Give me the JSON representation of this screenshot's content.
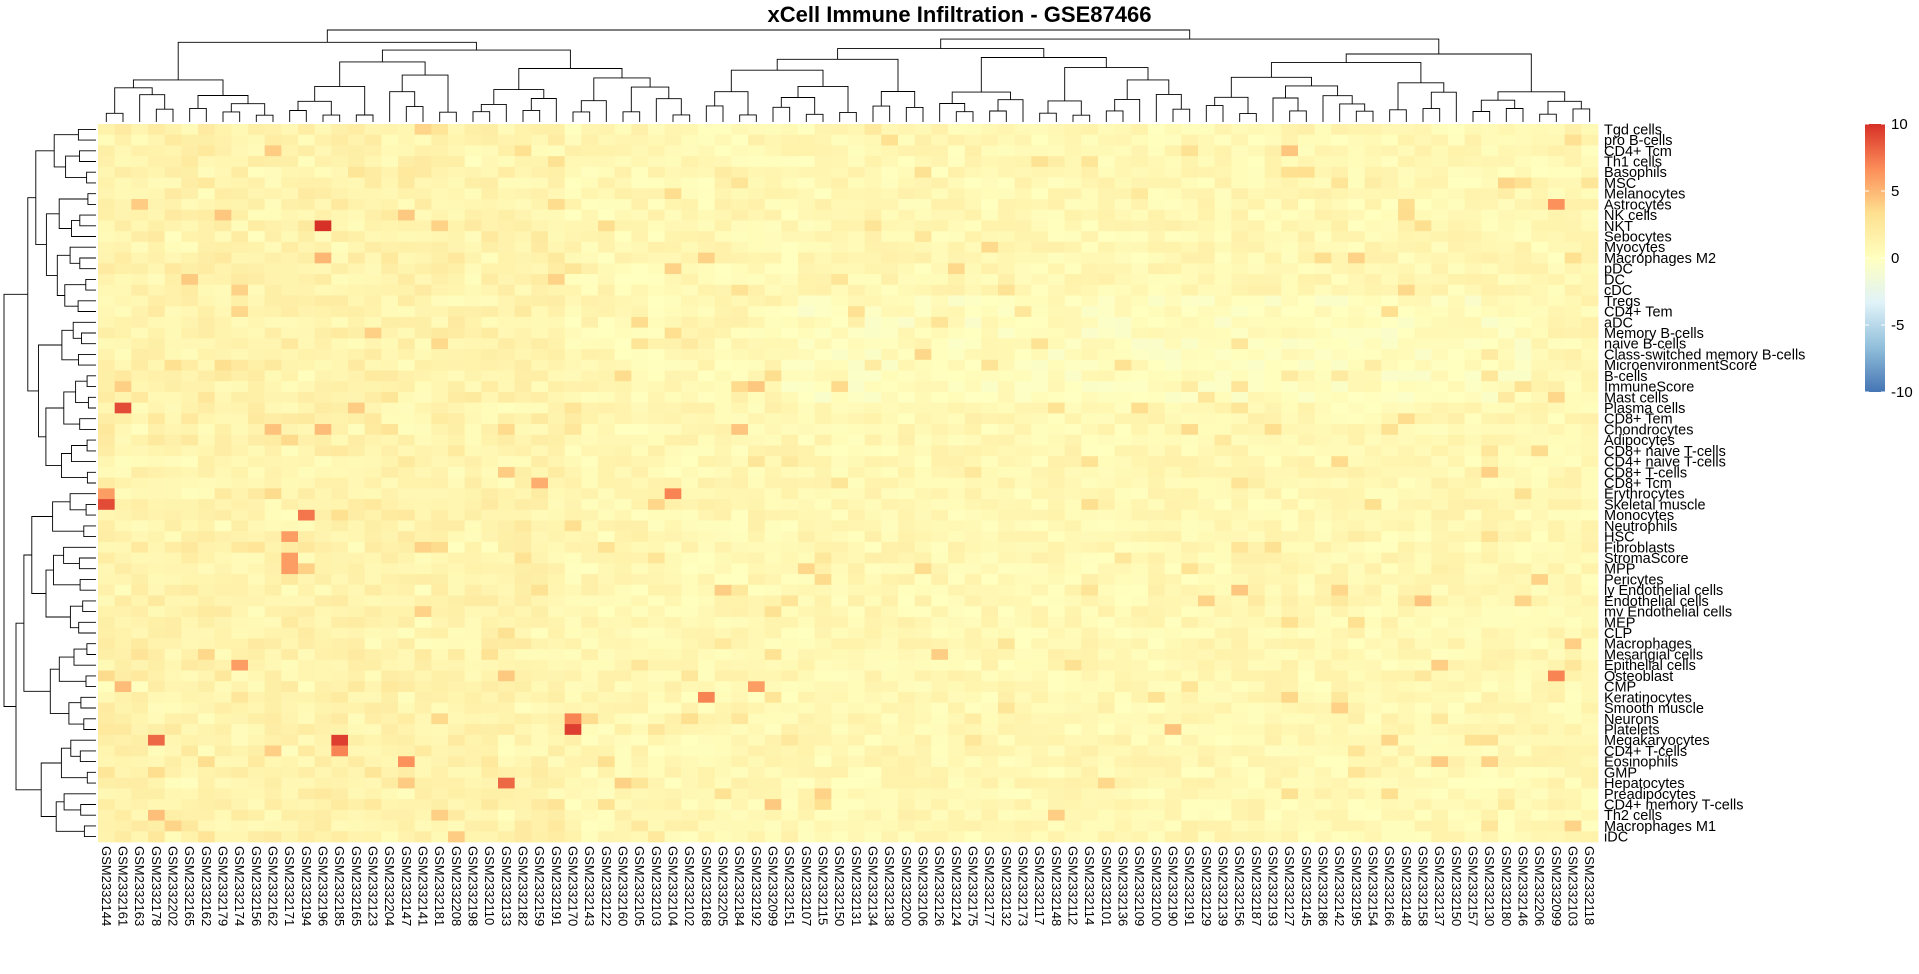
{
  "chart_data": {
    "type": "heatmap",
    "title": "xCell Immune Infiltration - GSE87466",
    "color_scale": {
      "range": [
        -10,
        10
      ],
      "ticks": [
        10,
        5,
        0,
        -5,
        -10
      ],
      "colors": [
        "#4575b4",
        "#91bfdb",
        "#e0f3f8",
        "#ffffbf",
        "#fee090",
        "#fc8d59",
        "#d73027"
      ]
    },
    "rows": [
      "Tgd cells",
      "pro B-cells",
      "CD4+ Tcm",
      "Th1 cells",
      "Basophils",
      "MSC",
      "Melanocytes",
      "Astrocytes",
      "NK cells",
      "NKT",
      "Sebocytes",
      "Myocytes",
      "Macrophages M2",
      "pDC",
      "DC",
      "cDC",
      "Tregs",
      "CD4+ Tem",
      "aDC",
      "Memory B-cells",
      "naive B-cells",
      "Class-switched memory B-cells",
      "MicroenvironmentScore",
      "B-cells",
      "ImmuneScore",
      "Mast cells",
      "Plasma cells",
      "CD8+ Tem",
      "Chondrocytes",
      "Adipocytes",
      "CD8+ naive T-cells",
      "CD4+ naive T-cells",
      "CD8+ T-cells",
      "CD8+ Tcm",
      "Erythrocytes",
      "Skeletal muscle",
      "Monocytes",
      "Neutrophils",
      "HSC",
      "Fibroblasts",
      "StromaScore",
      "MPP",
      "Pericytes",
      "ly Endothelial cells",
      "Endothelial cells",
      "mv Endothelial cells",
      "MEP",
      "CLP",
      "Macrophages",
      "Mesangial cells",
      "Epithelial cells",
      "Osteoblast",
      "CMP",
      "Keratinocytes",
      "Smooth muscle",
      "Neurons",
      "Platelets",
      "Megakaryocytes",
      "CD4+ T-cells",
      "Eosinophils",
      "GMP",
      "Hepatocytes",
      "Preadipocytes",
      "CD4+ memory T-cells",
      "Th2 cells",
      "Macrophages M1",
      "iDC"
    ],
    "columns": [
      "GSM2332144",
      "GSM2332161",
      "GSM2332163",
      "GSM2332178",
      "GSM2332202",
      "GSM2332165",
      "GSM2332162",
      "GSM2332179",
      "GSM2332174",
      "GSM2332156",
      "GSM2332162",
      "GSM2332171",
      "GSM2332194",
      "GSM2332196",
      "GSM2332185",
      "GSM2332165",
      "GSM2332123",
      "GSM2332204",
      "GSM2332147",
      "GSM2332141",
      "GSM2332181",
      "GSM2332208",
      "GSM2332198",
      "GSM2332110",
      "GSM2332133",
      "GSM2332182",
      "GSM2332159",
      "GSM2332191",
      "GSM2332170",
      "GSM2332143",
      "GSM2332122",
      "GSM2332160",
      "GSM2332105",
      "GSM2332103",
      "GSM2332104",
      "GSM2332102",
      "GSM2332168",
      "GSM2332205",
      "GSM2332184",
      "GSM2332192",
      "GSM2332099",
      "GSM2332151",
      "GSM2332107",
      "GSM2332115",
      "GSM2332150",
      "GSM2332131",
      "GSM2332134",
      "GSM2332138",
      "GSM2332200",
      "GSM2332106",
      "GSM2332126",
      "GSM2332124",
      "GSM2332175",
      "GSM2332177",
      "GSM2332132",
      "GSM2332173",
      "GSM2332117",
      "GSM2332148",
      "GSM2332112",
      "GSM2332114",
      "GSM2332101",
      "GSM2332136",
      "GSM2332109",
      "GSM2332100",
      "GSM2332190",
      "GSM2332191",
      "GSM2332129",
      "GSM2332139",
      "GSM2332156",
      "GSM2332187",
      "GSM2332193",
      "GSM2332127",
      "GSM2332145",
      "GSM2332186",
      "GSM2332142",
      "GSM2332195",
      "GSM2332154",
      "GSM2332166",
      "GSM2332148",
      "GSM2332158",
      "GSM2332137",
      "GSM2332150",
      "GSM2332157",
      "GSM2332130",
      "GSM2332180",
      "GSM2332146",
      "GSM2332206",
      "GSM2332099",
      "GSM2332103",
      "GSM2332118"
    ],
    "highlights": [
      {
        "row": "NKT",
        "col": 13,
        "value": 10
      },
      {
        "row": "Skeletal muscle",
        "col": 0,
        "value": 9
      },
      {
        "row": "Erythrocytes",
        "col": 0,
        "value": 6
      },
      {
        "row": "Plasma cells",
        "col": 1,
        "value": 9
      },
      {
        "row": "Megakaryocytes",
        "col": 14,
        "value": 9.5
      },
      {
        "row": "CD4+ T-cells",
        "col": 14,
        "value": 7
      },
      {
        "row": "Neurons",
        "col": 28,
        "value": 7
      },
      {
        "row": "Platelets",
        "col": 28,
        "value": 9.5
      },
      {
        "row": "Macrophages M2",
        "col": 13,
        "value": 5
      },
      {
        "row": "Erythrocytes",
        "col": 34,
        "value": 7
      },
      {
        "row": "Osteoblast",
        "col": 87,
        "value": 7
      },
      {
        "row": "Hepatocytes",
        "col": 24,
        "value": 8
      },
      {
        "row": "Megakaryocytes",
        "col": 3,
        "value": 8
      },
      {
        "row": "Monocytes",
        "col": 12,
        "value": 7.5
      },
      {
        "row": "HSC",
        "col": 11,
        "value": 6
      },
      {
        "row": "StromaScore",
        "col": 11,
        "value": 6
      },
      {
        "row": "MPP",
        "col": 11,
        "value": 6
      },
      {
        "row": "Keratinocytes",
        "col": 36,
        "value": 7
      },
      {
        "row": "CMP",
        "col": 39,
        "value": 6
      },
      {
        "row": "Epithelial cells",
        "col": 8,
        "value": 6
      },
      {
        "row": "Eosinophils",
        "col": 18,
        "value": 6.5
      },
      {
        "row": "Astrocytes",
        "col": 87,
        "value": 6.5
      },
      {
        "row": "Macrophages",
        "col": 88,
        "value": 4
      }
    ]
  }
}
